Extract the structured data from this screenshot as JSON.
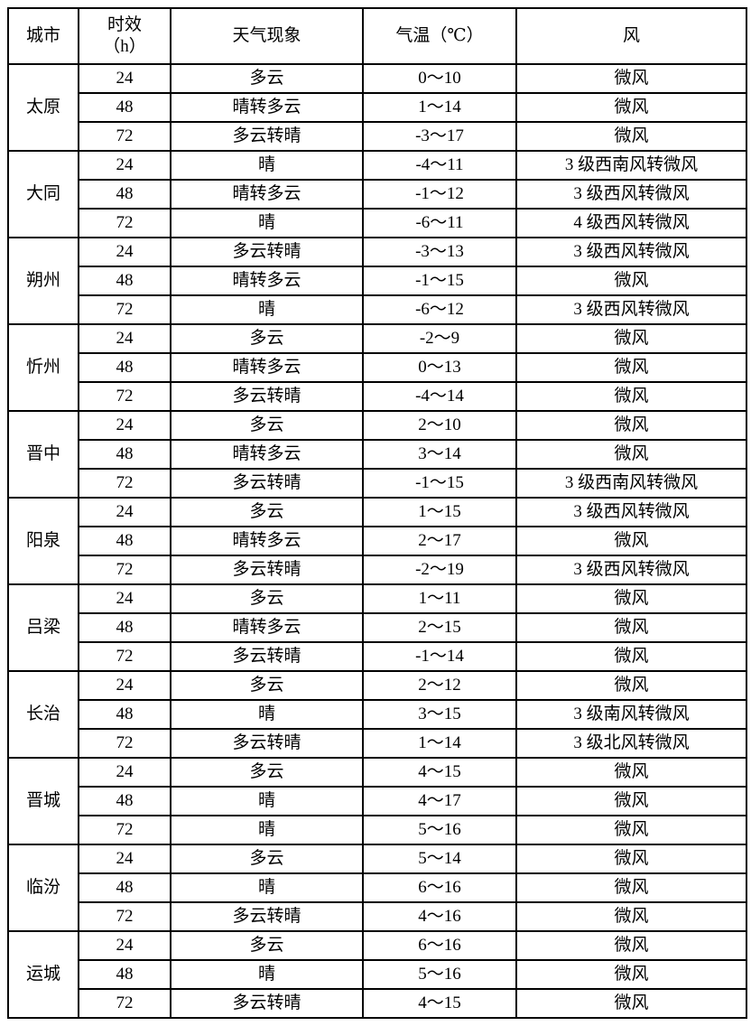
{
  "table": {
    "headers": {
      "city": "城市",
      "period_line1": "时效",
      "period_line2": "（h）",
      "weather": "天气现象",
      "temperature": "气温（℃）",
      "wind": "风"
    },
    "cities": [
      {
        "name": "太原",
        "rows": [
          {
            "period": "24",
            "weather": "多云",
            "temp": "0～10",
            "wind": "微风"
          },
          {
            "period": "48",
            "weather": "晴转多云",
            "temp": "1～14",
            "wind": "微风"
          },
          {
            "period": "72",
            "weather": "多云转晴",
            "temp": "-3～17",
            "wind": "微风"
          }
        ]
      },
      {
        "name": "大同",
        "rows": [
          {
            "period": "24",
            "weather": "晴",
            "temp": "-4～11",
            "wind": "3 级西南风转微风"
          },
          {
            "period": "48",
            "weather": "晴转多云",
            "temp": "-1～12",
            "wind": "3 级西风转微风"
          },
          {
            "period": "72",
            "weather": "晴",
            "temp": "-6～11",
            "wind": "4 级西风转微风"
          }
        ]
      },
      {
        "name": "朔州",
        "rows": [
          {
            "period": "24",
            "weather": "多云转晴",
            "temp": "-3～13",
            "wind": "3 级西风转微风"
          },
          {
            "period": "48",
            "weather": "晴转多云",
            "temp": "-1～15",
            "wind": "微风"
          },
          {
            "period": "72",
            "weather": "晴",
            "temp": "-6～12",
            "wind": "3 级西风转微风"
          }
        ]
      },
      {
        "name": "忻州",
        "rows": [
          {
            "period": "24",
            "weather": "多云",
            "temp": "-2～9",
            "wind": "微风"
          },
          {
            "period": "48",
            "weather": "晴转多云",
            "temp": "0～13",
            "wind": "微风"
          },
          {
            "period": "72",
            "weather": "多云转晴",
            "temp": "-4～14",
            "wind": "微风"
          }
        ]
      },
      {
        "name": "晋中",
        "rows": [
          {
            "period": "24",
            "weather": "多云",
            "temp": "2～10",
            "wind": "微风"
          },
          {
            "period": "48",
            "weather": "晴转多云",
            "temp": "3～14",
            "wind": "微风"
          },
          {
            "period": "72",
            "weather": "多云转晴",
            "temp": "-1～15",
            "wind": "3 级西南风转微风"
          }
        ]
      },
      {
        "name": "阳泉",
        "rows": [
          {
            "period": "24",
            "weather": "多云",
            "temp": "1～15",
            "wind": "3 级西风转微风"
          },
          {
            "period": "48",
            "weather": "晴转多云",
            "temp": "2～17",
            "wind": "微风"
          },
          {
            "period": "72",
            "weather": "多云转晴",
            "temp": "-2～19",
            "wind": "3 级西风转微风"
          }
        ]
      },
      {
        "name": "吕梁",
        "rows": [
          {
            "period": "24",
            "weather": "多云",
            "temp": "1～11",
            "wind": "微风"
          },
          {
            "period": "48",
            "weather": "晴转多云",
            "temp": "2～15",
            "wind": "微风"
          },
          {
            "period": "72",
            "weather": "多云转晴",
            "temp": "-1～14",
            "wind": "微风"
          }
        ]
      },
      {
        "name": "长治",
        "rows": [
          {
            "period": "24",
            "weather": "多云",
            "temp": "2～12",
            "wind": "微风"
          },
          {
            "period": "48",
            "weather": "晴",
            "temp": "3～15",
            "wind": "3 级南风转微风"
          },
          {
            "period": "72",
            "weather": "多云转晴",
            "temp": "1～14",
            "wind": "3 级北风转微风"
          }
        ]
      },
      {
        "name": "晋城",
        "rows": [
          {
            "period": "24",
            "weather": "多云",
            "temp": "4～15",
            "wind": "微风"
          },
          {
            "period": "48",
            "weather": "晴",
            "temp": "4～17",
            "wind": "微风"
          },
          {
            "period": "72",
            "weather": "晴",
            "temp": "5～16",
            "wind": "微风"
          }
        ]
      },
      {
        "name": "临汾",
        "rows": [
          {
            "period": "24",
            "weather": "多云",
            "temp": "5～14",
            "wind": "微风"
          },
          {
            "period": "48",
            "weather": "晴",
            "temp": "6～16",
            "wind": "微风"
          },
          {
            "period": "72",
            "weather": "多云转晴",
            "temp": "4～16",
            "wind": "微风"
          }
        ]
      },
      {
        "name": "运城",
        "rows": [
          {
            "period": "24",
            "weather": "多云",
            "temp": "6～16",
            "wind": "微风"
          },
          {
            "period": "48",
            "weather": "晴",
            "temp": "5～16",
            "wind": "微风"
          },
          {
            "period": "72",
            "weather": "多云转晴",
            "temp": "4～15",
            "wind": "微风"
          }
        ]
      }
    ]
  },
  "colors": {
    "border": "#000000",
    "text": "#000000",
    "background": "#ffffff"
  }
}
